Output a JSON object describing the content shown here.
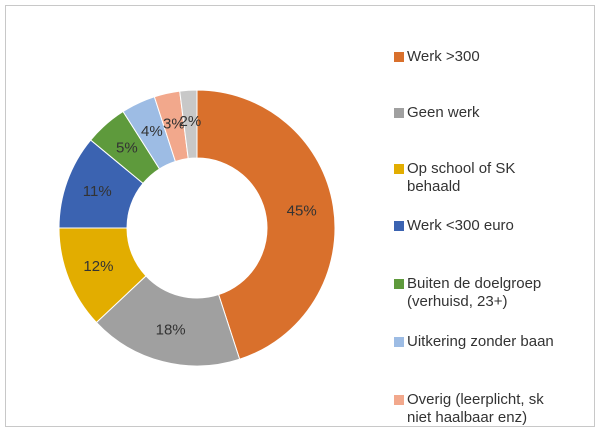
{
  "chart_data": {
    "type": "donut",
    "categories": [
      "Werk >300",
      "Geen werk",
      "Op school of SK behaald",
      "Werk <300 euro",
      "Buiten de doelgroep (verhuisd, 23+)",
      "Uitkering zonder baan",
      "Overig (leerplicht, sk niet haalbaar enz)",
      null
    ],
    "values": [
      45,
      18,
      12,
      11,
      5,
      4,
      3,
      2
    ],
    "value_labels": [
      "45%",
      "18%",
      "12%",
      "11%",
      "5%",
      "4%",
      "3%",
      "2%"
    ],
    "colors": [
      "#d9702c",
      "#a0a0a0",
      "#e2ad00",
      "#3b63b1",
      "#5e9a3c",
      "#9dbce4",
      "#f2a88c",
      "#c8c8c8"
    ]
  }
}
